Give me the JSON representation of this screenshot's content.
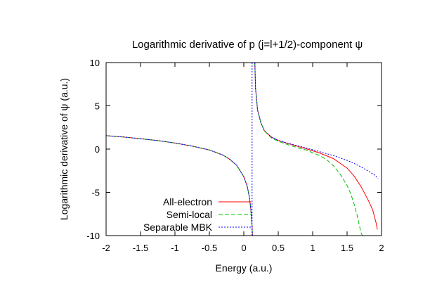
{
  "chart_data": {
    "type": "line",
    "title": "Logarithmic derivative of p (j=l+1/2)-component ψ",
    "xlabel": "Energy (a.u.)",
    "ylabel": "Logarithmic derivative of ψ (a.u.)",
    "xlim": [
      -2,
      2
    ],
    "ylim": [
      -10,
      10
    ],
    "xticks": [
      "-2",
      "-1.5",
      "-1",
      "-0.5",
      "0",
      "0.5",
      "1",
      "1.5",
      "2"
    ],
    "yticks": [
      "10",
      "5",
      "0",
      "-5",
      "-10"
    ],
    "grid": false,
    "legend_position": "bottom-left",
    "series": [
      {
        "name": "All-electron",
        "color": "#ff0000",
        "dash": "solid",
        "x": [
          -2.0,
          -1.75,
          -1.5,
          -1.25,
          -1.0,
          -0.75,
          -0.5,
          -0.3,
          -0.2,
          -0.1,
          0.0,
          0.05,
          0.08,
          0.1,
          0.11,
          0.12,
          0.125
        ],
        "y": [
          1.55,
          1.4,
          1.2,
          0.98,
          0.7,
          0.35,
          -0.1,
          -0.7,
          -1.2,
          -1.9,
          -3.2,
          -4.3,
          -5.5,
          -6.8,
          -7.8,
          -9.0,
          -10.0
        ],
        "x2": [
          0.16,
          0.17,
          0.2,
          0.25,
          0.3,
          0.4,
          0.5,
          0.7,
          0.9,
          1.1,
          1.3,
          1.5,
          1.6,
          1.7,
          1.8,
          1.87,
          1.92,
          1.94
        ],
        "y2": [
          10.0,
          7.0,
          4.5,
          3.0,
          2.1,
          1.4,
          1.0,
          0.5,
          0.05,
          -0.45,
          -1.1,
          -2.2,
          -3.1,
          -4.3,
          -5.8,
          -7.0,
          -8.5,
          -9.3
        ]
      },
      {
        "name": "Semi-local",
        "color": "#00c000",
        "dash": "dashed",
        "x": [
          -2.0,
          -1.75,
          -1.5,
          -1.25,
          -1.0,
          -0.75,
          -0.5,
          -0.3,
          -0.2,
          -0.1,
          0.0,
          0.05,
          0.08,
          0.1,
          0.11,
          0.12,
          0.125
        ],
        "y": [
          1.55,
          1.4,
          1.2,
          0.98,
          0.7,
          0.35,
          -0.1,
          -0.7,
          -1.2,
          -1.9,
          -3.2,
          -4.3,
          -5.5,
          -6.8,
          -7.8,
          -9.0,
          -10.0
        ],
        "x2": [
          0.16,
          0.17,
          0.2,
          0.25,
          0.3,
          0.4,
          0.5,
          0.7,
          0.9,
          1.1,
          1.2,
          1.3,
          1.4,
          1.5,
          1.55,
          1.6,
          1.65,
          1.7,
          1.72
        ],
        "y2": [
          10.0,
          7.0,
          4.5,
          3.0,
          2.1,
          1.3,
          0.9,
          0.35,
          -0.1,
          -0.75,
          -1.2,
          -1.9,
          -2.9,
          -4.2,
          -5.1,
          -6.3,
          -7.8,
          -9.6,
          -10.0
        ]
      },
      {
        "name": "Separable MBK",
        "color": "#0000ff",
        "dash": "dotted",
        "x": [
          -2.0,
          -1.75,
          -1.5,
          -1.25,
          -1.0,
          -0.75,
          -0.5,
          -0.3,
          -0.2,
          -0.1,
          0.0,
          0.05,
          0.08,
          0.1,
          0.11,
          0.12,
          0.125
        ],
        "y": [
          1.55,
          1.4,
          1.2,
          0.98,
          0.7,
          0.35,
          -0.1,
          -0.7,
          -1.2,
          -1.9,
          -3.2,
          -4.3,
          -5.5,
          -6.8,
          -7.8,
          -9.0,
          -10.0
        ],
        "x2": [
          0.16,
          0.17,
          0.2,
          0.25,
          0.3,
          0.4,
          0.5,
          0.7,
          0.9,
          1.1,
          1.3,
          1.5,
          1.6,
          1.7,
          1.8,
          1.9,
          1.95
        ],
        "y2": [
          10.0,
          7.0,
          4.5,
          3.0,
          2.1,
          1.4,
          1.0,
          0.55,
          0.15,
          -0.3,
          -0.75,
          -1.3,
          -1.65,
          -2.05,
          -2.5,
          -3.0,
          -3.4
        ],
        "vertical_x": 0.12
      }
    ]
  }
}
